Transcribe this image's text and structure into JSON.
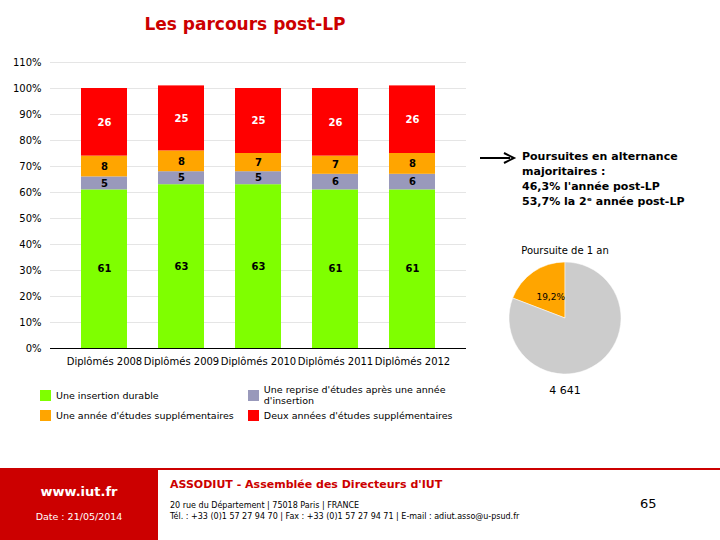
{
  "chart_data": [
    {
      "type": "bar",
      "title": "Les parcours post-LP",
      "stacked": true,
      "categories": [
        "Diplômés 2008",
        "Diplômés 2009",
        "Diplômés 2010",
        "Diplômés 2011",
        "Diplômés 2012"
      ],
      "series": [
        {
          "name": "Une insertion durable",
          "color": "#7FFF00",
          "values": [
            61,
            63,
            63,
            61,
            61
          ]
        },
        {
          "name": "Une reprise d'études après une année d'insertion",
          "color": "#9999BB",
          "values": [
            5,
            5,
            5,
            6,
            6
          ]
        },
        {
          "name": "Une année d'études supplémentaires",
          "color": "#FFA500",
          "values": [
            8,
            8,
            7,
            7,
            8
          ]
        },
        {
          "name": "Deux années d'études supplémentaires",
          "color": "#FF0000",
          "values": [
            26,
            25,
            25,
            26,
            26
          ]
        }
      ],
      "ylim": [
        0,
        110
      ],
      "yticks": [
        {
          "value": 0,
          "label": "0%"
        },
        {
          "value": 10,
          "label": "10%"
        },
        {
          "value": 20,
          "label": "20%"
        },
        {
          "value": 30,
          "label": "30%"
        },
        {
          "value": 40,
          "label": "40%"
        },
        {
          "value": 50,
          "label": "50%"
        },
        {
          "value": 60,
          "label": "60%"
        },
        {
          "value": 70,
          "label": "70%"
        },
        {
          "value": 80,
          "label": "80%"
        },
        {
          "value": 90,
          "label": "90%"
        },
        {
          "value": 100,
          "label": "100%"
        },
        {
          "value": 110,
          "label": "110%"
        }
      ],
      "grid": true,
      "data_labels": true,
      "legend": "bottom",
      "annotations": [
        "Poursuites en alternance\nmajoritaires :\n46,3% l'année post-LP\n53,7% la 2ᵉ année post-LP",
        "www.iut.fr",
        "Date : 21/05/2014",
        "ASSODIUT - Assemblée des Directeurs d'IUT",
        "20 rue du Département | 75018 Paris | FRANCE\nTél. : +33 (0)1 57 27 94 70 | Fax : +33 (0)1 57 27 94 71 | E-mail : adiut.asso@u-psud.fr",
        "65"
      ]
    },
    {
      "type": "pie",
      "title": "Poursuite de 1 an",
      "values": [
        19.2,
        80.8
      ],
      "value_labels": [
        "19,2%",
        null
      ],
      "colors": [
        "#FFA500",
        "#CCCCCC"
      ],
      "annotations": [
        "4 641"
      ]
    }
  ]
}
